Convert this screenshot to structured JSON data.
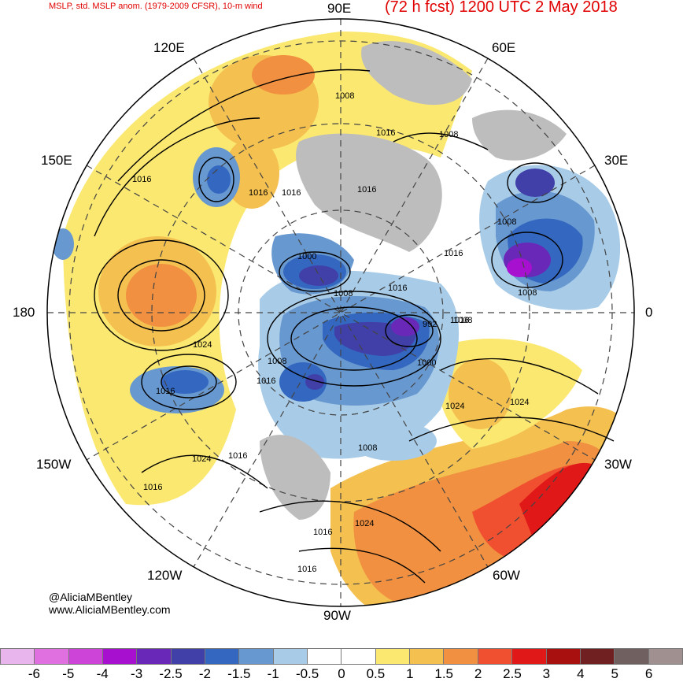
{
  "header": {
    "left": "MSLP, std. MSLP anom. (1979-2009 CFSR), 10-m wind",
    "right": "(72 h fcst) 1200 UTC 2 May 2018"
  },
  "longitudes": {
    "top": "90E",
    "bottom": "90W",
    "left": "180",
    "right": "0",
    "ne1": "60E",
    "ne2": "30E",
    "nw1": "120E",
    "nw2": "150E",
    "sw1": "150W",
    "sw2": "120W",
    "se1": "60W",
    "se2": "30W"
  },
  "credits": {
    "twitter": "@AliciaMBentley",
    "web": "www.AliciaMBentley.com"
  },
  "isobar_labels": [
    "1008",
    "1016",
    "1008",
    "1016",
    "1016",
    "1016",
    "1016",
    "1008",
    "1016",
    "1000",
    "1016",
    "1008",
    "1008",
    "1016",
    "1024",
    "992",
    "1008",
    "1000",
    "1008",
    "1016",
    "1016",
    "1024",
    "1024",
    "1024",
    "1016",
    "1016",
    "1024",
    "1016",
    "1016",
    "1008"
  ],
  "colorbar": {
    "colors": [
      "#e8b5ec",
      "#e070e0",
      "#cc44d8",
      "#a810d0",
      "#6a28b8",
      "#4040a8",
      "#3468c0",
      "#6898d0",
      "#a8cce8",
      "#ffffff",
      "#ffffff",
      "#fbe870",
      "#f4c050",
      "#f09040",
      "#f05030",
      "#e01818",
      "#a81010",
      "#702020",
      "#706060",
      "#a09090"
    ],
    "ticks": [
      "-6",
      "-5",
      "-4",
      "-3",
      "-2.5",
      "-2",
      "-1.5",
      "-1",
      "-0.5",
      "0",
      "0.5",
      "1",
      "1.5",
      "2",
      "2.5",
      "3",
      "4",
      "5",
      "6"
    ]
  }
}
